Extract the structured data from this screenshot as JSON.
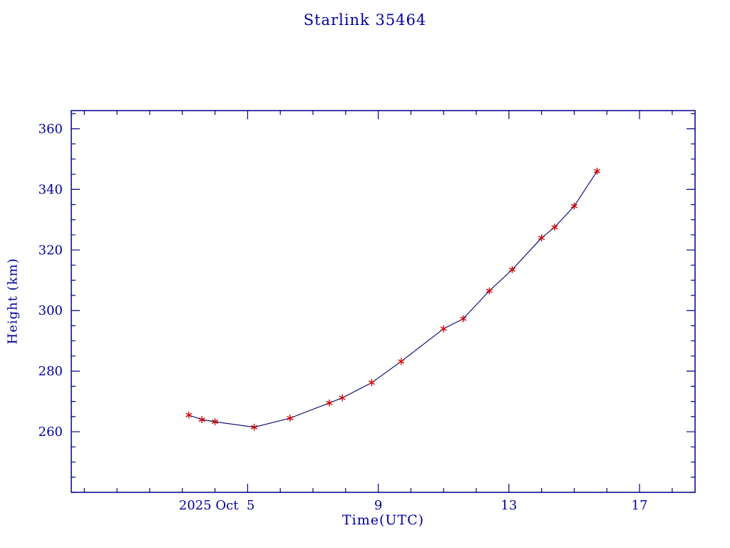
{
  "chart_data": {
    "type": "line",
    "title": "Starlink 35464",
    "xlabel": "Time(UTC)",
    "ylabel": "Height (km)",
    "xlim": [
      -0.4,
      18.7
    ],
    "ylim": [
      240,
      366
    ],
    "xticks": [
      {
        "value": 5,
        "label": "2025 Oct  5"
      },
      {
        "value": 9,
        "label": "9"
      },
      {
        "value": 13,
        "label": "13"
      },
      {
        "value": 17,
        "label": "17"
      }
    ],
    "yticks": [
      260,
      280,
      300,
      320,
      340,
      360
    ],
    "minor_x_step": 1,
    "minor_y_step": 5,
    "grid": false,
    "legend": "none",
    "series": [
      {
        "name": "height",
        "x": [
          3.2,
          3.6,
          4.0,
          5.2,
          6.3,
          7.5,
          7.9,
          8.8,
          9.7,
          11.0,
          11.6,
          12.4,
          13.1,
          14.0,
          14.4,
          15.0,
          15.7
        ],
        "y": [
          265.5,
          264.0,
          263.3,
          261.5,
          264.5,
          269.5,
          271.2,
          276.2,
          283.2,
          294.0,
          297.3,
          306.5,
          313.5,
          324.0,
          327.5,
          334.5,
          346.0
        ]
      }
    ],
    "colors": {
      "ink": "#0000a0",
      "axis": "#00008b",
      "line": "#00006a",
      "marker": "#cc0000"
    }
  }
}
